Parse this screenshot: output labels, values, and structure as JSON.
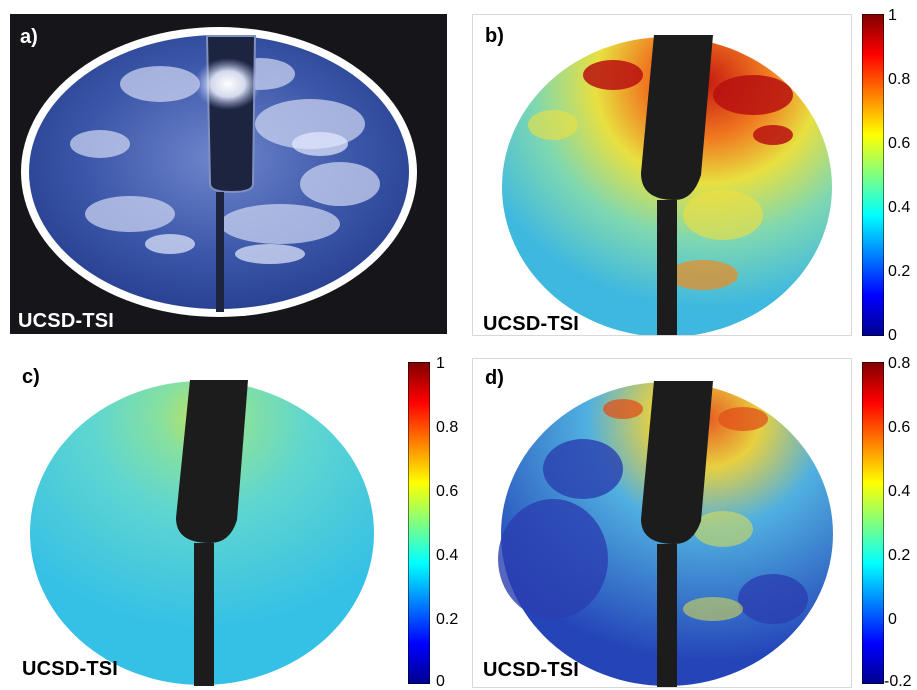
{
  "figure": {
    "panels": [
      {
        "id": "a",
        "label": "a)",
        "watermark": "UCSD-TSI"
      },
      {
        "id": "b",
        "label": "b)",
        "watermark": "UCSD-TSI",
        "colorbar": {
          "ticks": [
            "1",
            "0.8",
            "0.6",
            "0.4",
            "0.2",
            "0"
          ]
        }
      },
      {
        "id": "c",
        "label": "c)",
        "watermark": "UCSD-TSI",
        "colorbar": {
          "ticks": [
            "1",
            "0.8",
            "0.6",
            "0.4",
            "0.2",
            "0"
          ]
        }
      },
      {
        "id": "d",
        "label": "d)",
        "watermark": "UCSD-TSI",
        "colorbar": {
          "ticks": [
            "0.8",
            "0.6",
            "0.4",
            "0.2",
            "0",
            "-0.2"
          ]
        }
      }
    ],
    "colors": {
      "jet": [
        "#00008f",
        "#0000ff",
        "#00a0ff",
        "#40e0d0",
        "#80ff80",
        "#ffff00",
        "#ff8000",
        "#ff0000",
        "#800000"
      ],
      "shadowband": "#1f1f1f",
      "sky": "#3a55a8"
    }
  }
}
